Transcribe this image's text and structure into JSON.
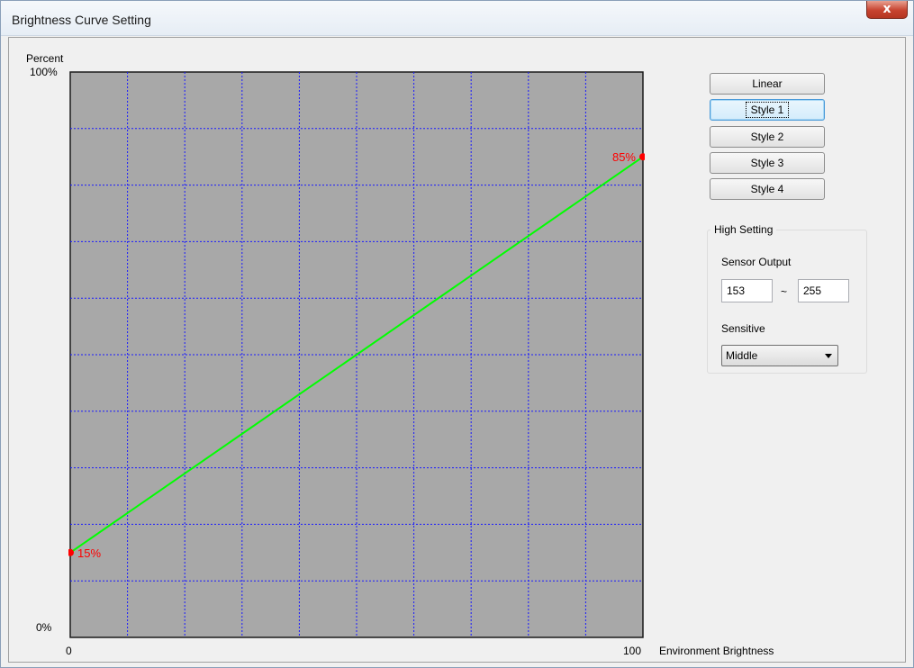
{
  "window": {
    "title": "Brightness Curve Setting",
    "close_glyph": "x"
  },
  "chart_data": {
    "type": "line",
    "ylabel": "Percent",
    "xlabel": "Environment Brightness",
    "xlim": [
      0,
      100
    ],
    "ylim": [
      0,
      100
    ],
    "x_tick_labels": [
      "0",
      "100"
    ],
    "y_tick_labels": [
      "100%",
      "0%"
    ],
    "grid": true,
    "grid_divisions": 10,
    "series": [
      {
        "x": [
          0,
          100
        ],
        "y": [
          15,
          85
        ],
        "color": "#00ff00"
      }
    ],
    "point_labels": [
      "15%",
      "85%"
    ],
    "point_color": "#ff0000",
    "plot_background": "#a8a8a8",
    "grid_color": "#1a1aff"
  },
  "style_buttons": [
    {
      "label": "Linear",
      "focused": false
    },
    {
      "label": "Style 1",
      "focused": true
    },
    {
      "label": "Style 2",
      "focused": false
    },
    {
      "label": "Style 3",
      "focused": false
    },
    {
      "label": "Style 4",
      "focused": false
    }
  ],
  "high_setting": {
    "group_title": "High Setting",
    "sensor_output_label": "Sensor Output",
    "sensor_min": "153",
    "range_separator": "~",
    "sensor_max": "255",
    "sensitive_label": "Sensitive",
    "sensitive_value": "Middle"
  }
}
